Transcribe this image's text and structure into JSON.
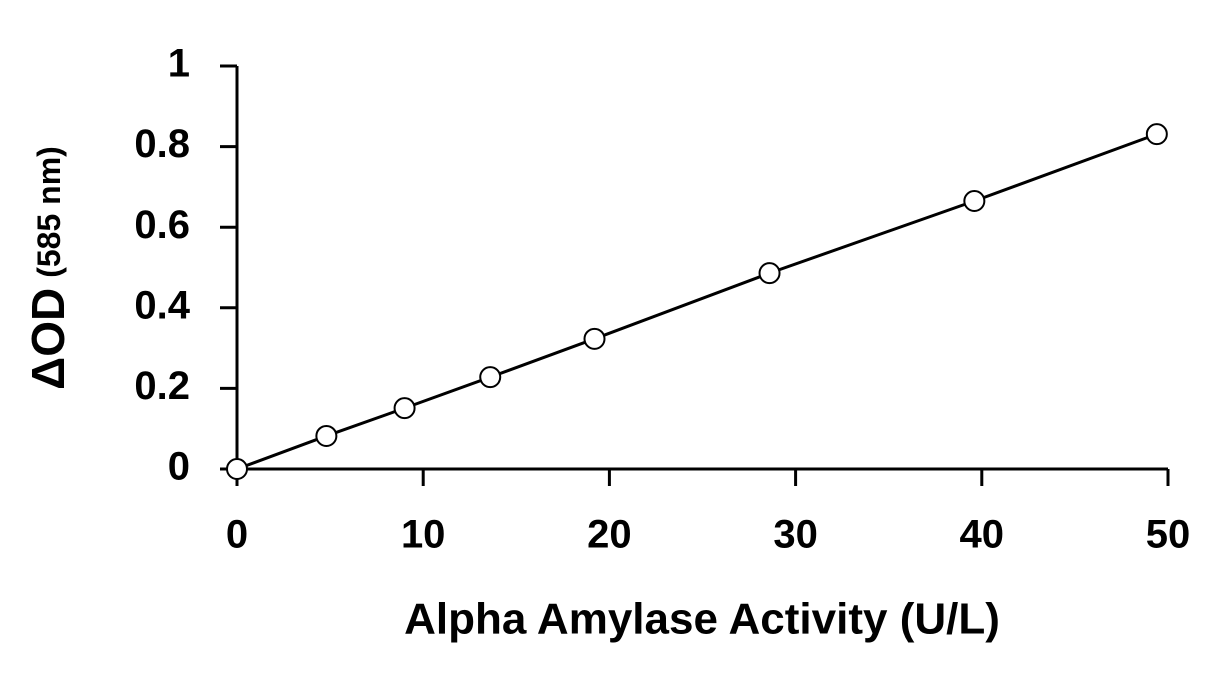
{
  "chart_data": {
    "type": "scatter",
    "x_label": "Alpha Amylase Activity (U/L)",
    "y_label": "ΔOD",
    "y_label_unit": "(585 nm)",
    "series": [
      {
        "color": "#000000",
        "x": [
          0,
          4.8,
          9,
          13.6,
          19.2,
          28.6,
          39.6,
          49.4
        ],
        "values": [
          0,
          0.082,
          0.151,
          0.228,
          0.323,
          0.486,
          0.665,
          0.831
        ]
      }
    ],
    "xlim": [
      0,
      50
    ],
    "xticks": [
      0,
      10,
      20,
      30,
      40,
      50
    ],
    "ylim": [
      0,
      1
    ],
    "yticks": [
      0,
      0.2,
      0.4,
      0.6,
      0.8,
      1
    ],
    "grid": false
  }
}
